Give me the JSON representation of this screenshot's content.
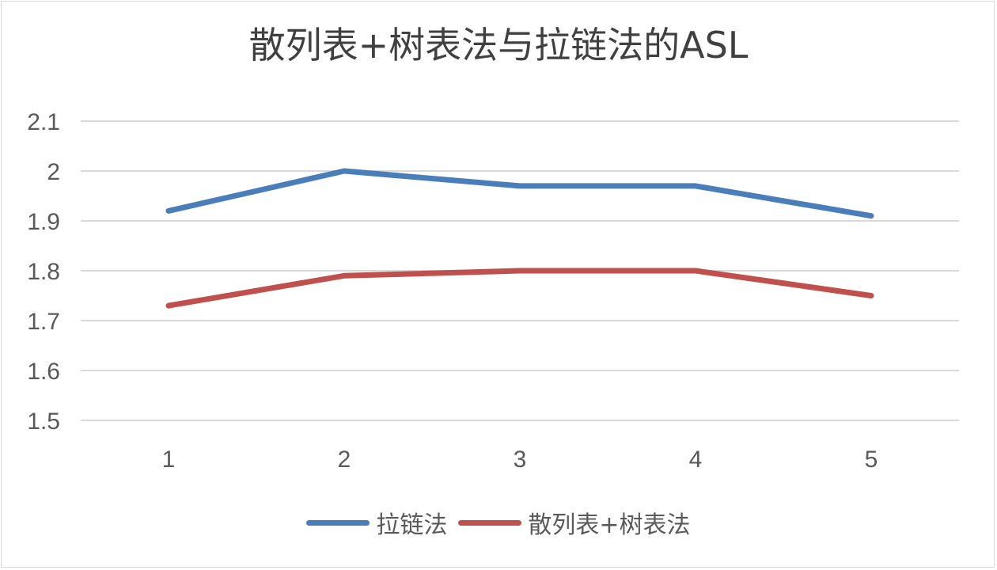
{
  "chart_data": {
    "type": "line",
    "title": "散列表+树表法与拉链法的ASL",
    "xlabel": "",
    "ylabel": "",
    "x": [
      "1",
      "2",
      "3",
      "4",
      "5"
    ],
    "ylim": [
      1.5,
      2.1
    ],
    "yticks": [
      "1.5",
      "1.6",
      "1.7",
      "1.8",
      "1.9",
      "2",
      "2.1"
    ],
    "grid": true,
    "legend_position": "bottom",
    "series": [
      {
        "name": "拉链法",
        "values": [
          1.92,
          2.0,
          1.97,
          1.97,
          1.91
        ],
        "color": "#4a7ebb"
      },
      {
        "name": "散列表+树表法",
        "values": [
          1.73,
          1.79,
          1.8,
          1.8,
          1.75
        ],
        "color": "#c0504d"
      }
    ]
  }
}
